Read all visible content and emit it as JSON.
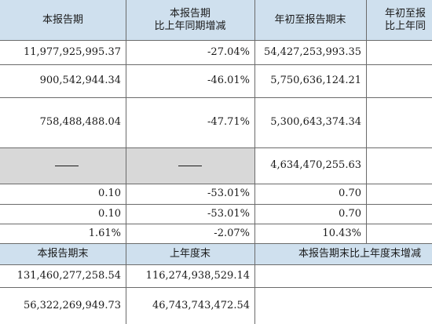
{
  "header1": {
    "col1": "本报告期",
    "col2_line1": "本报告期",
    "col2_line2": "比上年同期增减",
    "col3": "年初至报告期末",
    "col4_line1": "年初至报",
    "col4_line2": "比上年同"
  },
  "rows": [
    {
      "current": "11,977,925,995.37",
      "change": "-27.04%",
      "ytd": "54,427,253,993.35"
    },
    {
      "current": "900,542,944.34",
      "change": "-46.01%",
      "ytd": "5,750,636,124.21"
    },
    {
      "current": "758,488,488.04",
      "change": "-47.71%",
      "ytd": "5,300,643,374.34"
    },
    {
      "current": "——",
      "change": "——",
      "ytd": "4,634,470,255.63"
    },
    {
      "current": "0.10",
      "change": "-53.01%",
      "ytd": "0.70"
    },
    {
      "current": "0.10",
      "change": "-53.01%",
      "ytd": "0.70"
    },
    {
      "current": "1.61%",
      "change": "-2.07%",
      "ytd": "10.43%"
    }
  ],
  "header2": {
    "col1": "本报告期末",
    "col2": "上年度末",
    "col3": "本报告期末比上年度末增减"
  },
  "rows2": [
    {
      "end": "131,460,277,258.54",
      "prev": "116,274,938,529.14"
    },
    {
      "end": "56,322,269,949.73",
      "prev": "46,743,743,472.54"
    }
  ]
}
